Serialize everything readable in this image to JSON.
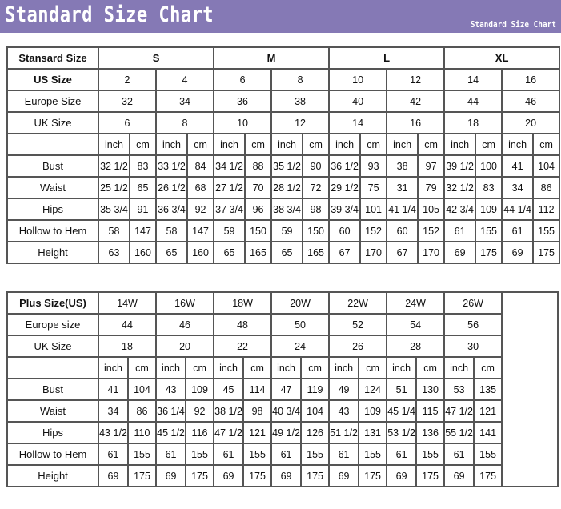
{
  "header": {
    "title": "Standard Size Chart",
    "subtitle": "Standard Size Chart"
  },
  "standard": {
    "corner_label": "Stansard Size",
    "groups": [
      "S",
      "M",
      "L",
      "XL"
    ],
    "us_label": "US Size",
    "us": [
      "2",
      "4",
      "6",
      "8",
      "10",
      "12",
      "14",
      "16"
    ],
    "eu_label": "Europe Size",
    "eu": [
      "32",
      "34",
      "36",
      "38",
      "40",
      "42",
      "44",
      "46"
    ],
    "uk_label": "UK Size",
    "uk": [
      "6",
      "8",
      "10",
      "12",
      "14",
      "16",
      "18",
      "20"
    ],
    "unit_inch": "inch",
    "unit_cm": "cm",
    "rows": [
      {
        "label": "Bust",
        "values": [
          "32 1/2",
          "83",
          "33 1/2",
          "84",
          "34 1/2",
          "88",
          "35 1/2",
          "90",
          "36 1/2",
          "93",
          "38",
          "97",
          "39 1/2",
          "100",
          "41",
          "104"
        ]
      },
      {
        "label": "Waist",
        "values": [
          "25 1/2",
          "65",
          "26 1/2",
          "68",
          "27 1/2",
          "70",
          "28 1/2",
          "72",
          "29 1/2",
          "75",
          "31",
          "79",
          "32 1/2",
          "83",
          "34",
          "86"
        ]
      },
      {
        "label": "Hips",
        "values": [
          "35 3/4",
          "91",
          "36 3/4",
          "92",
          "37 3/4",
          "96",
          "38 3/4",
          "98",
          "39 3/4",
          "101",
          "41 1/4",
          "105",
          "42 3/4",
          "109",
          "44 1/4",
          "112"
        ]
      },
      {
        "label": "Hollow to Hem",
        "values": [
          "58",
          "147",
          "58",
          "147",
          "59",
          "150",
          "59",
          "150",
          "60",
          "152",
          "60",
          "152",
          "61",
          "155",
          "61",
          "155"
        ]
      },
      {
        "label": "Height",
        "values": [
          "63",
          "160",
          "65",
          "160",
          "65",
          "165",
          "65",
          "165",
          "67",
          "170",
          "67",
          "170",
          "69",
          "175",
          "69",
          "175"
        ]
      }
    ]
  },
  "plus": {
    "corner_label": "Plus Size(US)",
    "us": [
      "14W",
      "16W",
      "18W",
      "20W",
      "22W",
      "24W",
      "26W"
    ],
    "eu_label": "Europe size",
    "eu": [
      "44",
      "46",
      "48",
      "50",
      "52",
      "54",
      "56"
    ],
    "uk_label": "UK Size",
    "uk": [
      "18",
      "20",
      "22",
      "24",
      "26",
      "28",
      "30"
    ],
    "unit_inch": "inch",
    "unit_cm": "cm",
    "rows": [
      {
        "label": "Bust",
        "values": [
          "41",
          "104",
          "43",
          "109",
          "45",
          "114",
          "47",
          "119",
          "49",
          "124",
          "51",
          "130",
          "53",
          "135"
        ]
      },
      {
        "label": "Waist",
        "values": [
          "34",
          "86",
          "36 1/4",
          "92",
          "38 1/2",
          "98",
          "40 3/4",
          "104",
          "43",
          "109",
          "45 1/4",
          "115",
          "47 1/2",
          "121"
        ]
      },
      {
        "label": "Hips",
        "values": [
          "43 1/2",
          "110",
          "45 1/2",
          "116",
          "47 1/2",
          "121",
          "49 1/2",
          "126",
          "51 1/2",
          "131",
          "53 1/2",
          "136",
          "55 1/2",
          "141"
        ]
      },
      {
        "label": "Hollow to Hem",
        "values": [
          "61",
          "155",
          "61",
          "155",
          "61",
          "155",
          "61",
          "155",
          "61",
          "155",
          "61",
          "155",
          "61",
          "155"
        ]
      },
      {
        "label": "Height",
        "values": [
          "69",
          "175",
          "69",
          "175",
          "69",
          "175",
          "69",
          "175",
          "69",
          "175",
          "69",
          "175",
          "69",
          "175"
        ]
      }
    ]
  }
}
